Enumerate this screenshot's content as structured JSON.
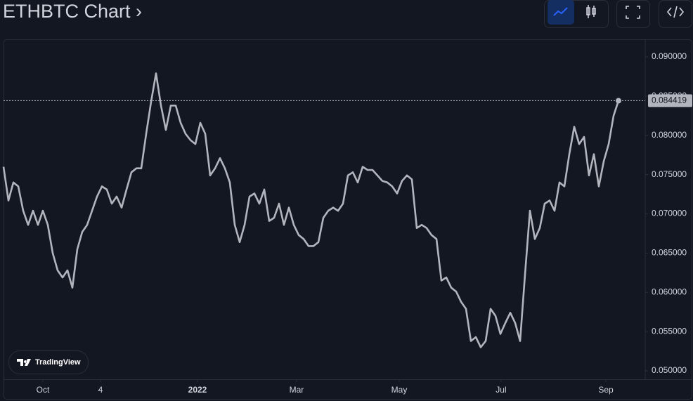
{
  "chart_data": {
    "type": "line",
    "title": "ETHBTC Chart ›",
    "brand": "TradingView",
    "color": "#b2b5be",
    "values": [
      0.076,
      0.0717,
      0.074,
      0.0735,
      0.0704,
      0.0686,
      0.0704,
      0.0686,
      0.0704,
      0.0686,
      0.065,
      0.0628,
      0.0619,
      0.0628,
      0.0606,
      0.0655,
      0.0677,
      0.0686,
      0.0704,
      0.0722,
      0.0735,
      0.0731,
      0.0713,
      0.0722,
      0.0708,
      0.0731,
      0.0753,
      0.0758,
      0.0758,
      0.0802,
      0.0843,
      0.0879,
      0.0838,
      0.0807,
      0.0838,
      0.0838,
      0.0816,
      0.0802,
      0.0794,
      0.0789,
      0.0816,
      0.0802,
      0.0749,
      0.0758,
      0.0771,
      0.0758,
      0.074,
      0.0686,
      0.0664,
      0.0686,
      0.0722,
      0.0726,
      0.0713,
      0.0731,
      0.0691,
      0.0695,
      0.0713,
      0.0686,
      0.0708,
      0.0686,
      0.0673,
      0.0668,
      0.0659,
      0.0659,
      0.0664,
      0.0695,
      0.0704,
      0.0708,
      0.0704,
      0.0713,
      0.0749,
      0.0753,
      0.074,
      0.076,
      0.0756,
      0.0756,
      0.0749,
      0.0742,
      0.074,
      0.0735,
      0.0726,
      0.0742,
      0.0749,
      0.0744,
      0.0682,
      0.0686,
      0.0682,
      0.0673,
      0.0668,
      0.0615,
      0.0619,
      0.0606,
      0.0601,
      0.0588,
      0.0579,
      0.0538,
      0.0543,
      0.053,
      0.0538,
      0.0579,
      0.057,
      0.0547,
      0.0561,
      0.0574,
      0.0561,
      0.0538,
      0.0623,
      0.0704,
      0.0668,
      0.0682,
      0.0713,
      0.0717,
      0.0704,
      0.074,
      0.0735,
      0.0776,
      0.0811,
      0.0789,
      0.0798,
      0.0749,
      0.0776,
      0.0735,
      0.0767,
      0.0789,
      0.0825,
      0.084419
    ],
    "xlim": [
      0,
      130.43
    ],
    "xticks": [
      {
        "value": 8,
        "label": "Oct"
      },
      {
        "value": 19.71,
        "label": "4"
      },
      {
        "value": 39.43,
        "label": "2022"
      },
      {
        "value": 59.57,
        "label": "Mar"
      },
      {
        "value": 80.43,
        "label": "May"
      },
      {
        "value": 101.14,
        "label": "Jul"
      },
      {
        "value": 122.43,
        "label": "Sep"
      }
    ],
    "ylim": [
      0.04893,
      0.09215
    ],
    "yticks": [
      {
        "value": 0.05,
        "label": "0.050000"
      },
      {
        "value": 0.055,
        "label": "0.055000"
      },
      {
        "value": 0.06,
        "label": "0.060000"
      },
      {
        "value": 0.065,
        "label": "0.065000"
      },
      {
        "value": 0.07,
        "label": "0.070000"
      },
      {
        "value": 0.075,
        "label": "0.075000"
      },
      {
        "value": 0.08,
        "label": "0.080000"
      },
      {
        "value": 0.085,
        "label": "0.085000"
      },
      {
        "value": 0.09,
        "label": "0.090000"
      }
    ],
    "grid": false
  }
}
